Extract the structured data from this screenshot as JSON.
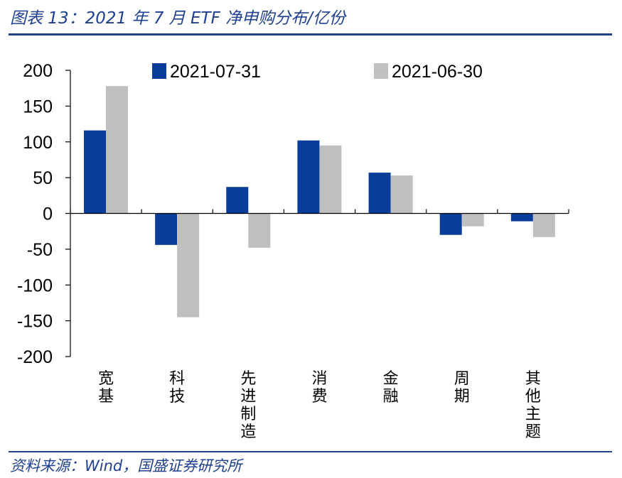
{
  "header": {
    "title": "图表 13：2021 年 7 月 ETF 净申购分布/亿份"
  },
  "footer": {
    "source": "资料来源：Wind，国盛证券研究所"
  },
  "colors": {
    "series1": "#0a3c9a",
    "series2": "#bfbfbf",
    "axis": "#000000",
    "accent": "#1f3f8f"
  },
  "chart_data": {
    "type": "bar",
    "categories": [
      "宽基",
      "科技",
      "先进制造",
      "消费",
      "金融",
      "周期",
      "其他主题"
    ],
    "series": [
      {
        "name": "2021-07-31",
        "values": [
          116,
          -44,
          37,
          102,
          57,
          -30,
          -11
        ]
      },
      {
        "name": "2021-06-30",
        "values": [
          178,
          -145,
          -48,
          95,
          53,
          -18,
          -33
        ]
      }
    ],
    "ylim": [
      -200,
      200
    ],
    "yticks": [
      200,
      150,
      100,
      50,
      0,
      -50,
      -100,
      -150,
      -200
    ],
    "legend_position": "top",
    "grid": false
  }
}
